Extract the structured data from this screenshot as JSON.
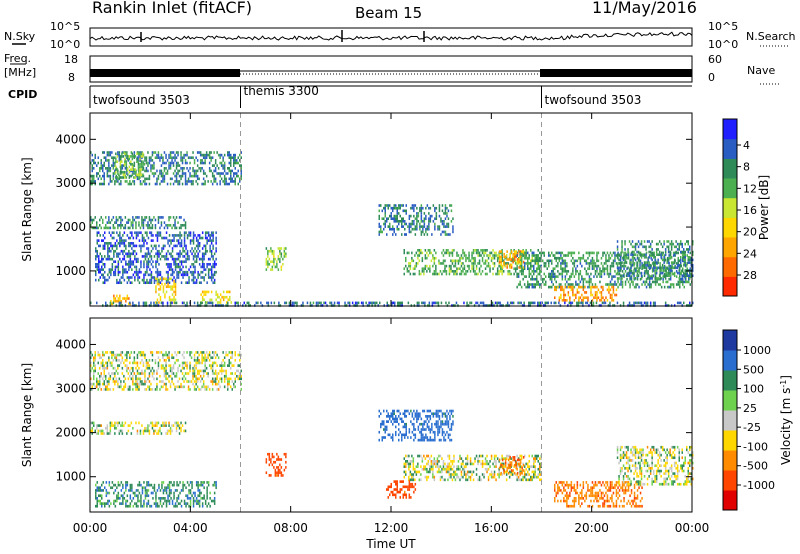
{
  "header": {
    "station": "Rankin Inlet (fitACF)",
    "beam": "Beam 15",
    "date": "11/May/2016"
  },
  "aux_panels": {
    "nsky_label": "N.Sky",
    "nsky_top": "10^5",
    "nsky_bottom": "10^0",
    "nsky_right_top": "10^5",
    "nsky_right_bottom": "10^0",
    "nsearch_label": "N.Search",
    "freq_label_1": "Freq.",
    "freq_label_2": "[MHz]",
    "freq_top": "18",
    "freq_bottom": "8",
    "nave_top": "60",
    "nave_bottom": "0",
    "nave_label": "Nave",
    "cpid_label": "CPID"
  },
  "cpid_segments": [
    {
      "name": "twofsound 3503",
      "start_hour": 0,
      "end_hour": 6
    },
    {
      "name": "themis 3300",
      "start_hour": 6,
      "end_hour": 18
    },
    {
      "name": "twofsound 3503",
      "start_hour": 18,
      "end_hour": 24
    }
  ],
  "chart_data": [
    {
      "type": "heatmap",
      "panel": "power",
      "xlabel": "",
      "ylabel": "Slant Range [km]",
      "xlim": [
        0,
        24
      ],
      "ylim": [
        200,
        4600
      ],
      "yticks": [
        1000,
        2000,
        3000,
        4000
      ],
      "colorbar": {
        "label": "Power [dB]",
        "ticks": [
          "4",
          "8",
          "12",
          "16",
          "20",
          "24",
          "28"
        ],
        "colors": [
          "#1f1fff",
          "#2a5dc2",
          "#2e8b57",
          "#4caf50",
          "#c8e632",
          "#ffd700",
          "#ffa500",
          "#ff6a00",
          "#ff2a00"
        ]
      },
      "regions": [
        {
          "t0": 0.0,
          "t1": 6.0,
          "r0": 2950,
          "r1": 3700,
          "val": 8
        },
        {
          "t0": 1.0,
          "t1": 2.2,
          "r0": 3100,
          "r1": 3650,
          "val": 13
        },
        {
          "t0": 0.0,
          "t1": 3.8,
          "r0": 1950,
          "r1": 2200,
          "val": 9
        },
        {
          "t0": 0.2,
          "t1": 5.0,
          "r0": 700,
          "r1": 1900,
          "val": 6
        },
        {
          "t0": 0.8,
          "t1": 1.6,
          "r0": 220,
          "r1": 450,
          "val": 22
        },
        {
          "t0": 2.6,
          "t1": 3.4,
          "r0": 250,
          "r1": 800,
          "val": 20
        },
        {
          "t0": 4.4,
          "t1": 5.6,
          "r0": 250,
          "r1": 550,
          "val": 18
        },
        {
          "t0": 7.0,
          "t1": 7.8,
          "r0": 1000,
          "r1": 1500,
          "val": 14
        },
        {
          "t0": 11.5,
          "t1": 14.5,
          "r0": 1800,
          "r1": 2500,
          "val": 8
        },
        {
          "t0": 12.5,
          "t1": 18.0,
          "r0": 900,
          "r1": 1500,
          "val": 12
        },
        {
          "t0": 16.3,
          "t1": 17.3,
          "r0": 1050,
          "r1": 1450,
          "val": 22
        },
        {
          "t0": 17.0,
          "t1": 24.0,
          "r0": 600,
          "r1": 1400,
          "val": 10
        },
        {
          "t0": 18.5,
          "t1": 21.0,
          "r0": 300,
          "r1": 650,
          "val": 24
        },
        {
          "t0": 21.0,
          "t1": 24.0,
          "r0": 800,
          "r1": 1700,
          "val": 9
        },
        {
          "t0": 0.0,
          "t1": 24.0,
          "r0": 180,
          "r1": 260,
          "val": 7
        }
      ]
    },
    {
      "type": "heatmap",
      "panel": "velocity",
      "xlabel": "Time UT",
      "ylabel": "Slant Range [km]",
      "xlim": [
        0,
        24
      ],
      "ylim": [
        200,
        4600
      ],
      "yticks": [
        1000,
        2000,
        3000,
        4000
      ],
      "xticks": [
        "00:00",
        "04:00",
        "08:00",
        "12:00",
        "16:00",
        "20:00",
        "00:00"
      ],
      "colorbar": {
        "label": "Velocity [m s^-1]",
        "ticks": [
          "1000",
          "500",
          "100",
          "25",
          "-25",
          "-100",
          "-500",
          "-1000"
        ],
        "colors": [
          "#1e3aa0",
          "#2a6fd0",
          "#2e8b57",
          "#6fd24f",
          "#c8c8c8",
          "#ffd700",
          "#ff8c00",
          "#ff4500",
          "#e00000"
        ]
      },
      "regions": [
        {
          "t0": 0.0,
          "t1": 6.0,
          "r0": 2950,
          "r1": 3800,
          "val": 0
        },
        {
          "t0": 0.0,
          "t1": 3.8,
          "r0": 1950,
          "r1": 2200,
          "val": 0
        },
        {
          "t0": 0.2,
          "t1": 5.0,
          "r0": 300,
          "r1": 900,
          "val": 150
        },
        {
          "t0": 7.0,
          "t1": 7.8,
          "r0": 1000,
          "r1": 1500,
          "val": -400
        },
        {
          "t0": 11.5,
          "t1": 14.5,
          "r0": 1800,
          "r1": 2500,
          "val": 300
        },
        {
          "t0": 12.5,
          "t1": 18.0,
          "r0": 900,
          "r1": 1500,
          "val": 0
        },
        {
          "t0": 16.3,
          "t1": 17.3,
          "r0": 1050,
          "r1": 1450,
          "val": -300
        },
        {
          "t0": 18.5,
          "t1": 22.0,
          "r0": 300,
          "r1": 900,
          "val": -250
        },
        {
          "t0": 11.8,
          "t1": 13.0,
          "r0": 500,
          "r1": 900,
          "val": -400
        },
        {
          "t0": 21.0,
          "t1": 24.0,
          "r0": 800,
          "r1": 1700,
          "val": 0
        }
      ]
    }
  ]
}
